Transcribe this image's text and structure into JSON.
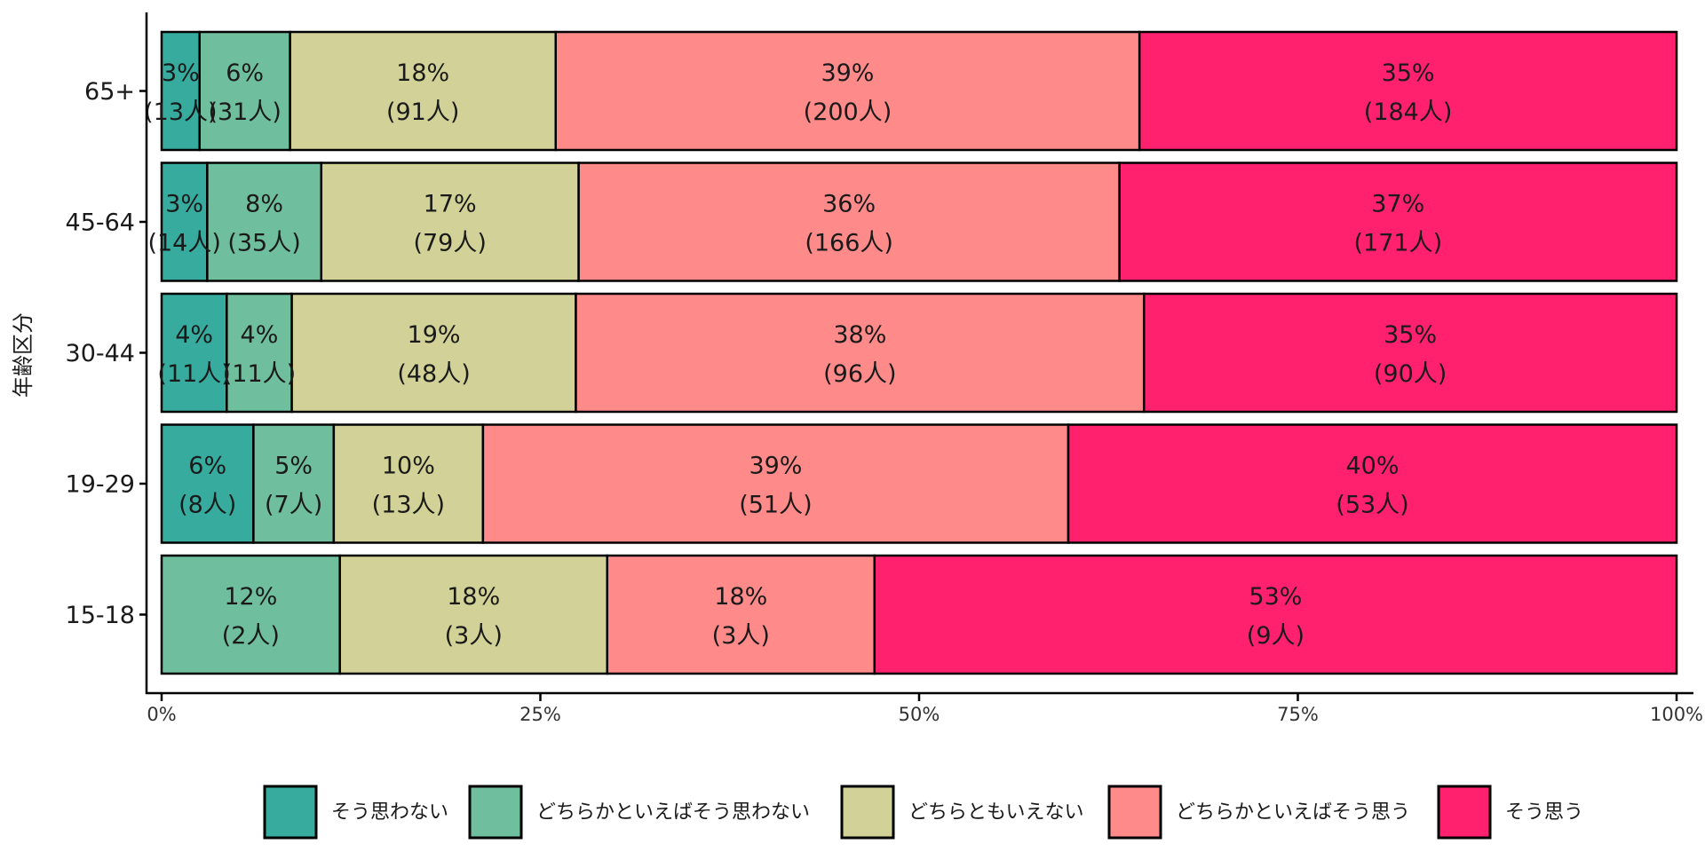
{
  "chart_data": {
    "type": "bar",
    "orientation": "horizontal",
    "stacked": "percent",
    "title": "",
    "xlabel": "",
    "ylabel": "年齢区分",
    "xlim": [
      0,
      100
    ],
    "x_ticks": [
      "0%",
      "25%",
      "50%",
      "75%",
      "100%"
    ],
    "x_tick_values": [
      0,
      25,
      50,
      75,
      100
    ],
    "categories": [
      "65+",
      "45-64",
      "30-44",
      "19-29",
      "15-18"
    ],
    "series": [
      {
        "name": "そう思わない",
        "color": "#36ab9e",
        "counts": [
          13,
          14,
          11,
          8,
          0
        ],
        "labels": [
          "3%",
          "3%",
          "4%",
          "6%",
          ""
        ],
        "count_labels": [
          "(13人)",
          "(14人)",
          "(11人)",
          "(8人)",
          ""
        ]
      },
      {
        "name": "どちらかといえばそう思わない",
        "color": "#6fbe9e",
        "counts": [
          31,
          35,
          11,
          7,
          2
        ],
        "labels": [
          "6%",
          "8%",
          "4%",
          "5%",
          "12%"
        ],
        "count_labels": [
          "(31人)",
          "(35人)",
          "(11人)",
          "(7人)",
          "(2人)"
        ]
      },
      {
        "name": "どちらともいえない",
        "color": "#d2d298",
        "counts": [
          91,
          79,
          48,
          13,
          3
        ],
        "labels": [
          "18%",
          "17%",
          "19%",
          "10%",
          "18%"
        ],
        "count_labels": [
          "(91人)",
          "(79人)",
          "(48人)",
          "(13人)",
          "(3人)"
        ]
      },
      {
        "name": "どちらかといえばそう思う",
        "color": "#ff8a8a",
        "counts": [
          200,
          166,
          96,
          51,
          3
        ],
        "labels": [
          "39%",
          "36%",
          "38%",
          "39%",
          "18%"
        ],
        "count_labels": [
          "(200人)",
          "(166人)",
          "(96人)",
          "(51人)",
          "(3人)"
        ]
      },
      {
        "name": "そう思う",
        "color": "#ff216d",
        "counts": [
          184,
          171,
          90,
          53,
          9
        ],
        "labels": [
          "35%",
          "37%",
          "35%",
          "40%",
          "53%"
        ],
        "count_labels": [
          "(184人)",
          "(171人)",
          "(90人)",
          "(53人)",
          "(9人)"
        ]
      }
    ],
    "legend": {
      "position": "bottom",
      "direction": "horizontal"
    },
    "grid": false
  }
}
